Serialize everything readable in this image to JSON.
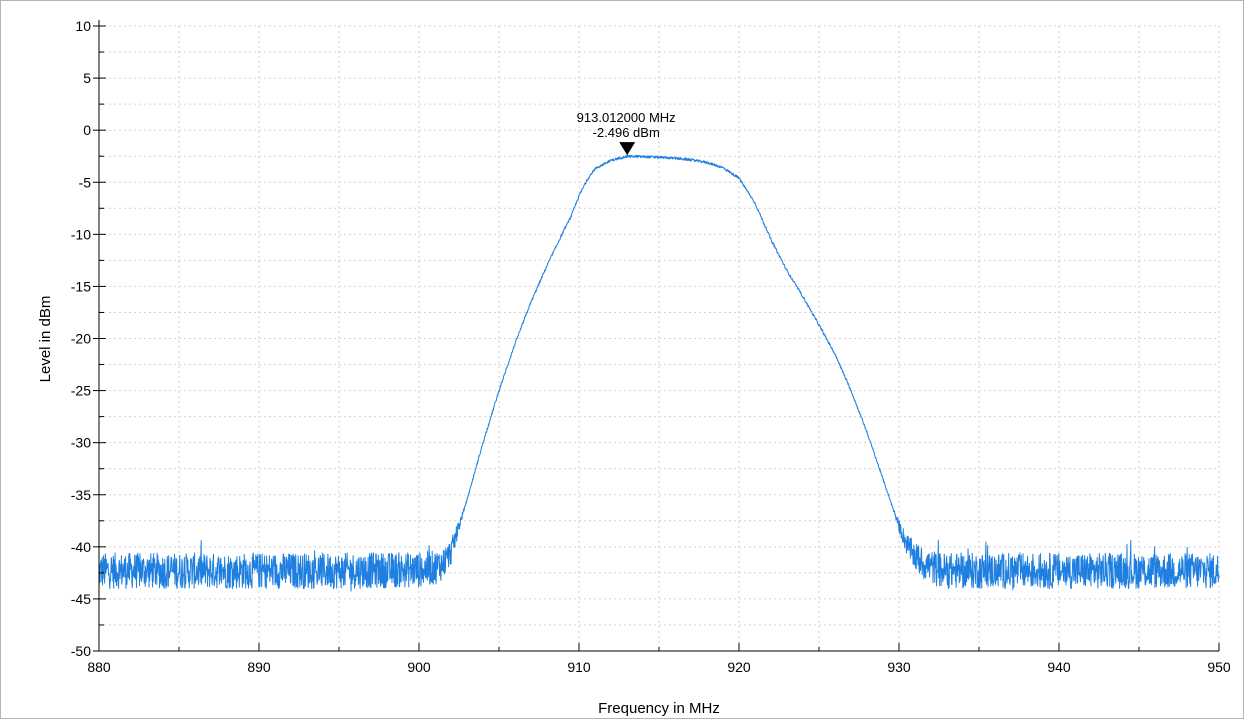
{
  "chart_data": {
    "type": "line",
    "xlabel": "Frequency in MHz",
    "ylabel": "Level in dBm",
    "xlim": [
      880,
      950
    ],
    "ylim": [
      -50,
      10
    ],
    "x_ticks": [
      "880",
      "890",
      "900",
      "910",
      "920",
      "930",
      "940",
      "950"
    ],
    "y_ticks": [
      "10",
      "5",
      "0",
      "-5",
      "-10",
      "-15",
      "-20",
      "-25",
      "-30",
      "-35",
      "-40",
      "-45",
      "-50"
    ],
    "grid": true,
    "noise_floor_dbm": -42.3,
    "series": [
      {
        "color": "#1e7fe0",
        "x": [
          880,
          895,
          900,
          901,
          901.5,
          902,
          903,
          904,
          905,
          906,
          907,
          908,
          909,
          909.5,
          910,
          910.5,
          911,
          912,
          913,
          914,
          915,
          916,
          917,
          918,
          919,
          920,
          921,
          922,
          923,
          924,
          925,
          926,
          927,
          928,
          929,
          930,
          930.5,
          931,
          931.5,
          932,
          932.5,
          933,
          935,
          950
        ],
        "y": [
          -42.3,
          -42.3,
          -42.2,
          -42.0,
          -41.6,
          -40.5,
          -35.5,
          -30.0,
          -25.0,
          -20.5,
          -16.5,
          -13.0,
          -9.8,
          -8.3,
          -6.3,
          -4.8,
          -3.7,
          -2.9,
          -2.5,
          -2.55,
          -2.6,
          -2.7,
          -2.85,
          -3.1,
          -3.6,
          -4.6,
          -7.0,
          -10.5,
          -13.5,
          -16.0,
          -18.7,
          -21.5,
          -25.0,
          -29.0,
          -33.5,
          -38.0,
          -39.8,
          -40.9,
          -41.6,
          -41.9,
          -42.2,
          -42.3,
          -42.3,
          -42.3
        ]
      }
    ],
    "marker": {
      "x": 913.012,
      "y": -2.496,
      "freq_label": "913.012000 MHz",
      "level_label": "-2.496 dBm"
    }
  }
}
